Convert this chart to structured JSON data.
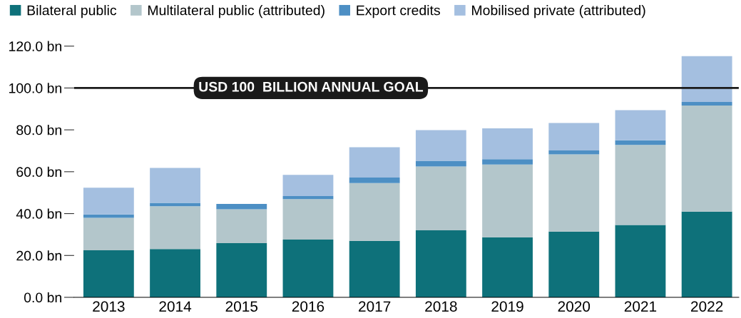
{
  "chart_data": {
    "type": "bar",
    "stacked": true,
    "categories": [
      "2013",
      "2014",
      "2015",
      "2016",
      "2017",
      "2018",
      "2019",
      "2020",
      "2021",
      "2022"
    ],
    "series": [
      {
        "name": "Bilateral public",
        "color": "#0e717a",
        "values": [
          22.5,
          23.1,
          25.9,
          27.6,
          27.0,
          32.0,
          28.7,
          31.4,
          34.6,
          41.0
        ]
      },
      {
        "name": "Multilateral public (attributed)",
        "color": "#b3c6cb",
        "values": [
          15.5,
          20.4,
          16.2,
          19.3,
          27.6,
          30.5,
          34.7,
          36.9,
          38.2,
          50.6
        ]
      },
      {
        "name": "Export credits",
        "color": "#4d8fc4",
        "values": [
          1.6,
          1.6,
          2.5,
          1.5,
          2.6,
          2.7,
          2.6,
          1.9,
          2.2,
          1.7
        ]
      },
      {
        "name": "Mobilised private (attributed)",
        "color": "#a4bfe0",
        "values": [
          12.8,
          16.7,
          null,
          10.1,
          14.5,
          14.7,
          14.7,
          13.1,
          14.4,
          21.9
        ]
      }
    ],
    "ylim": [
      0,
      120
    ],
    "yticks": [
      {
        "value": 0,
        "label": "0.0 bn"
      },
      {
        "value": 20,
        "label": "20.0 bn"
      },
      {
        "value": 40,
        "label": "40.0 bn"
      },
      {
        "value": 60,
        "label": "60.0 bn"
      },
      {
        "value": 80,
        "label": "80.0 bn"
      },
      {
        "value": 100,
        "label": "100.0 bn"
      },
      {
        "value": 120,
        "label": "120.0 bn"
      }
    ],
    "ref_lines": [
      {
        "axis": "y",
        "value": 100,
        "label": "USD 100  BILLION ANNUAL GOAL",
        "color": "#1a1a1a"
      }
    ],
    "legend": "top left",
    "grid": false
  }
}
